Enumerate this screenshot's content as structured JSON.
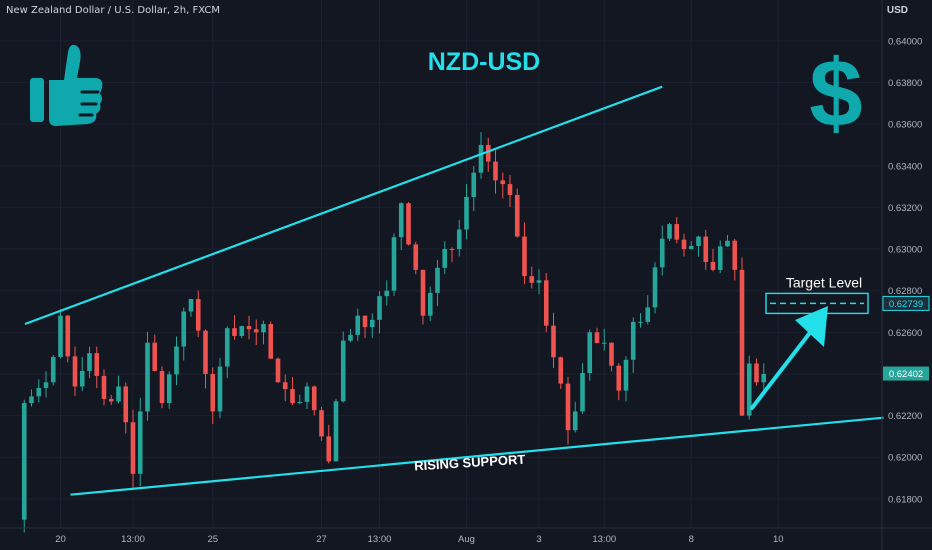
{
  "header": {
    "symbol_info": "New Zealand Dollar / U.S. Dollar, 2h, FXCM",
    "currency": "USD"
  },
  "annotations": {
    "title": "NZD-USD",
    "target_label": "Target Level",
    "support_label": "RISING SUPPORT"
  },
  "icons": [
    "thumbs-up-icon",
    "dollar-icon"
  ],
  "colors": {
    "background": "#131722",
    "bull": "#26a69a",
    "bear": "#ef5350",
    "annotation": "#22dfea",
    "last_price_badge": "#26a69a",
    "target_badge": "#1f2d3d"
  },
  "price_badges": {
    "target": "0.62739",
    "last": "0.62402"
  },
  "chart_data": {
    "type": "candlestick",
    "yaxis": {
      "ticks": [
        "0.64000",
        "0.63800",
        "0.63600",
        "0.63400",
        "0.63200",
        "0.63000",
        "0.62800",
        "0.62600",
        "0.62400",
        "0.62200",
        "0.62000",
        "0.61800"
      ],
      "ylim": [
        0.6166,
        0.6411
      ]
    },
    "xaxis": {
      "ticks": [
        "20",
        "13:00",
        "25",
        "27",
        "13:00",
        "Aug",
        "3",
        "13:00",
        "8",
        "10"
      ],
      "tick_bar_index": [
        6,
        16,
        27,
        42,
        50,
        62,
        72,
        81,
        93,
        105
      ]
    },
    "bars_total": 106,
    "pivots": [
      {
        "i": 0,
        "p": 0.617
      },
      {
        "i": 1,
        "p": 0.6226
      },
      {
        "i": 4,
        "p": 0.6236
      },
      {
        "i": 6,
        "p": 0.6268
      },
      {
        "i": 8,
        "p": 0.6234
      },
      {
        "i": 10,
        "p": 0.625
      },
      {
        "i": 12,
        "p": 0.6228
      },
      {
        "i": 14,
        "p": 0.6234
      },
      {
        "i": 16,
        "p": 0.6192
      },
      {
        "i": 17,
        "p": 0.6222
      },
      {
        "i": 18,
        "p": 0.6255
      },
      {
        "i": 20,
        "p": 0.6226
      },
      {
        "i": 23,
        "p": 0.627
      },
      {
        "i": 24,
        "p": 0.6276
      },
      {
        "i": 26,
        "p": 0.624
      },
      {
        "i": 27,
        "p": 0.6222
      },
      {
        "i": 29,
        "p": 0.6262
      },
      {
        "i": 31,
        "p": 0.6263
      },
      {
        "i": 33,
        "p": 0.626
      },
      {
        "i": 34,
        "p": 0.6264
      },
      {
        "i": 36,
        "p": 0.6236
      },
      {
        "i": 38,
        "p": 0.6226
      },
      {
        "i": 40,
        "p": 0.6234
      },
      {
        "i": 42,
        "p": 0.621
      },
      {
        "i": 43,
        "p": 0.6198
      },
      {
        "i": 45,
        "p": 0.6256
      },
      {
        "i": 47,
        "p": 0.6268
      },
      {
        "i": 49,
        "p": 0.6266
      },
      {
        "i": 51,
        "p": 0.628
      },
      {
        "i": 53,
        "p": 0.6322
      },
      {
        "i": 55,
        "p": 0.629
      },
      {
        "i": 56,
        "p": 0.6268
      },
      {
        "i": 58,
        "p": 0.6291
      },
      {
        "i": 60,
        "p": 0.63
      },
      {
        "i": 62,
        "p": 0.6325
      },
      {
        "i": 64,
        "p": 0.635
      },
      {
        "i": 66,
        "p": 0.6333
      },
      {
        "i": 68,
        "p": 0.6326
      },
      {
        "i": 69,
        "p": 0.6306
      },
      {
        "i": 70,
        "p": 0.6287
      },
      {
        "i": 72,
        "p": 0.6285
      },
      {
        "i": 74,
        "p": 0.6248
      },
      {
        "i": 76,
        "p": 0.6213
      },
      {
        "i": 77,
        "p": 0.6222
      },
      {
        "i": 79,
        "p": 0.626
      },
      {
        "i": 81,
        "p": 0.6255
      },
      {
        "i": 83,
        "p": 0.6232
      },
      {
        "i": 85,
        "p": 0.6265
      },
      {
        "i": 87,
        "p": 0.6272
      },
      {
        "i": 89,
        "p": 0.6305
      },
      {
        "i": 90,
        "p": 0.6312
      },
      {
        "i": 92,
        "p": 0.63
      },
      {
        "i": 94,
        "p": 0.6306
      },
      {
        "i": 96,
        "p": 0.629
      },
      {
        "i": 98,
        "p": 0.6304
      },
      {
        "i": 99,
        "p": 0.629
      },
      {
        "i": 100,
        "p": 0.622
      },
      {
        "i": 101,
        "p": 0.6245
      },
      {
        "i": 102,
        "p": 0.6236
      },
      {
        "i": 103,
        "p": 0.624
      }
    ],
    "trendlines": {
      "upper": {
        "from": {
          "i": 0,
          "p": 0.6264
        },
        "to": {
          "i": 89,
          "p": 0.6378
        }
      },
      "support": {
        "from": {
          "i": 6,
          "p": 0.6182
        },
        "to": {
          "i": 114,
          "p": 0.6219
        }
      }
    },
    "target_price": 0.62739,
    "last_price": 0.62402
  }
}
